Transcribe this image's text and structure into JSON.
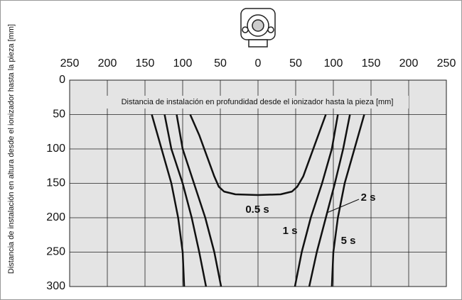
{
  "chart_data": {
    "type": "line",
    "title": "Distancia de instalación en profundidad desde el ionizador hasta la pieza [mm]",
    "y_label": "Distancia de instalación en altura desde el ionizador hasta la pieza [mm]",
    "xlim": [
      -250,
      250
    ],
    "xticks": [
      {
        "value": -250,
        "label": "250"
      },
      {
        "value": -200,
        "label": "200"
      },
      {
        "value": -150,
        "label": "150"
      },
      {
        "value": -100,
        "label": "100"
      },
      {
        "value": -50,
        "label": "50"
      },
      0,
      50,
      100,
      150,
      200,
      250
    ],
    "ylim": [
      0,
      300
    ],
    "yticks": [
      0,
      50,
      100,
      150,
      200,
      250,
      300
    ],
    "y_inverted": true,
    "grid": true,
    "series": [
      {
        "name": "0.5 s",
        "color": "#111111",
        "x": [
          -90,
          -78,
          -68,
          -58,
          -52,
          -45,
          -30,
          0,
          30,
          45,
          52,
          60,
          70,
          80,
          90
        ],
        "values": [
          50,
          80,
          110,
          140,
          155,
          162,
          166,
          167,
          166,
          162,
          155,
          140,
          110,
          80,
          50
        ]
      },
      {
        "name": "1 s",
        "color": "#111111",
        "x": [
          -108,
          -100,
          -85,
          -70,
          -58,
          -49,
          null,
          49,
          58,
          70,
          85,
          98,
          106
        ],
        "values": [
          50,
          100,
          150,
          200,
          250,
          300,
          null,
          300,
          250,
          200,
          150,
          100,
          50
        ]
      },
      {
        "name": "2 s",
        "color": "#111111",
        "x": [
          -124,
          -115,
          -100,
          -88,
          -78,
          -69,
          null,
          68,
          78,
          90,
          102,
          113,
          122
        ],
        "values": [
          50,
          100,
          150,
          200,
          250,
          300,
          null,
          300,
          250,
          200,
          150,
          100,
          50
        ]
      },
      {
        "name": "5 s",
        "color": "#111111",
        "x": [
          -141,
          -128,
          -115,
          -106,
          -100,
          -98,
          null,
          98,
          100,
          106,
          115,
          128,
          141
        ],
        "values": [
          50,
          100,
          150,
          200,
          250,
          300,
          null,
          300,
          250,
          200,
          150,
          100,
          50
        ]
      }
    ]
  }
}
